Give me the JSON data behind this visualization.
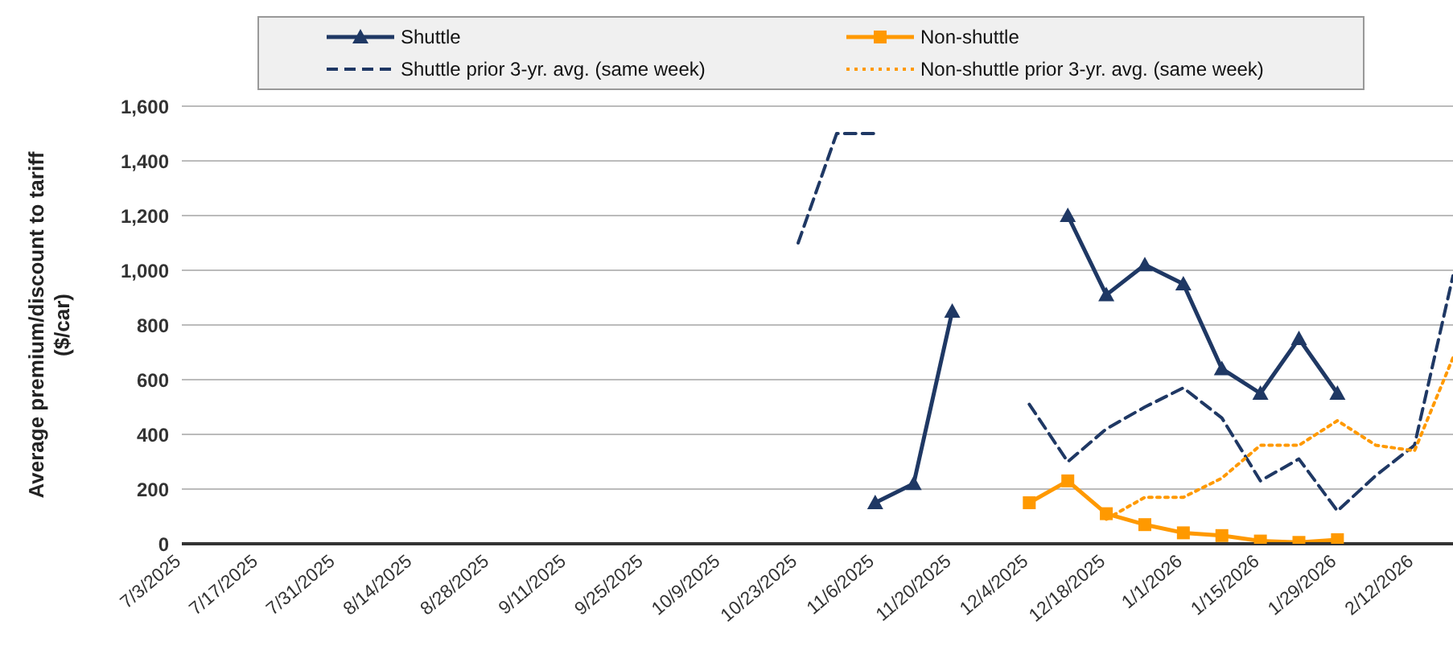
{
  "chart_data": {
    "type": "line",
    "ylabel": "Average premium/discount to tariff ($/car)",
    "categories": [
      "7/3/2025",
      null,
      "7/17/2025",
      null,
      "7/31/2025",
      null,
      "8/14/2025",
      null,
      "8/28/2025",
      null,
      "9/11/2025",
      null,
      "9/25/2025",
      null,
      "10/9/2025",
      null,
      "10/23/2025",
      null,
      "11/6/2025",
      null,
      "11/20/2025",
      null,
      "12/4/2025",
      null,
      "12/18/2025",
      null,
      "1/1/2026",
      null,
      "1/15/2026",
      null,
      "1/29/2026",
      null,
      "2/12/2026",
      null
    ],
    "series": [
      {
        "name": "Shuttle",
        "color": "#1f3864",
        "marker": "triangle",
        "line_style": "solid",
        "values": [
          null,
          null,
          null,
          null,
          null,
          null,
          null,
          null,
          null,
          null,
          null,
          null,
          null,
          null,
          null,
          null,
          null,
          null,
          150,
          220,
          850,
          null,
          null,
          1200,
          910,
          1020,
          950,
          640,
          550,
          750,
          550,
          null,
          null,
          null
        ]
      },
      {
        "name": "Non-shuttle",
        "color": "#ff9900",
        "marker": "square",
        "line_style": "solid",
        "values": [
          null,
          null,
          null,
          null,
          null,
          null,
          null,
          null,
          null,
          null,
          null,
          null,
          null,
          null,
          null,
          null,
          null,
          null,
          null,
          null,
          null,
          null,
          150,
          230,
          110,
          70,
          40,
          30,
          10,
          5,
          15,
          null,
          null,
          null
        ]
      },
      {
        "name": "Shuttle prior 3-yr. avg. (same week)",
        "color": "#1f3864",
        "marker": "none",
        "line_style": "dashed",
        "values": [
          null,
          null,
          null,
          null,
          null,
          null,
          null,
          null,
          null,
          null,
          null,
          null,
          null,
          null,
          null,
          null,
          1100,
          1500,
          1500,
          null,
          null,
          null,
          510,
          300,
          420,
          500,
          570,
          460,
          230,
          310,
          120,
          250,
          360,
          980
        ]
      },
      {
        "name": "Non-shuttle prior 3-yr. avg. (same week)",
        "color": "#ff9900",
        "marker": "none",
        "line_style": "dotted",
        "values": [
          null,
          null,
          null,
          null,
          null,
          null,
          null,
          null,
          null,
          null,
          null,
          null,
          null,
          null,
          null,
          null,
          null,
          null,
          null,
          null,
          null,
          null,
          null,
          null,
          90,
          170,
          170,
          240,
          360,
          360,
          450,
          360,
          340,
          680
        ]
      }
    ],
    "ylim": [
      0,
      1600
    ],
    "yticks": [
      0,
      200,
      400,
      600,
      800,
      {
        "value": 1000,
        "label": "1,000"
      },
      {
        "value": 1200,
        "label": "1,200"
      },
      {
        "value": 1400,
        "label": "1,400"
      },
      {
        "value": 1600,
        "label": "1,600"
      }
    ],
    "grid": "y",
    "legend": "top"
  }
}
